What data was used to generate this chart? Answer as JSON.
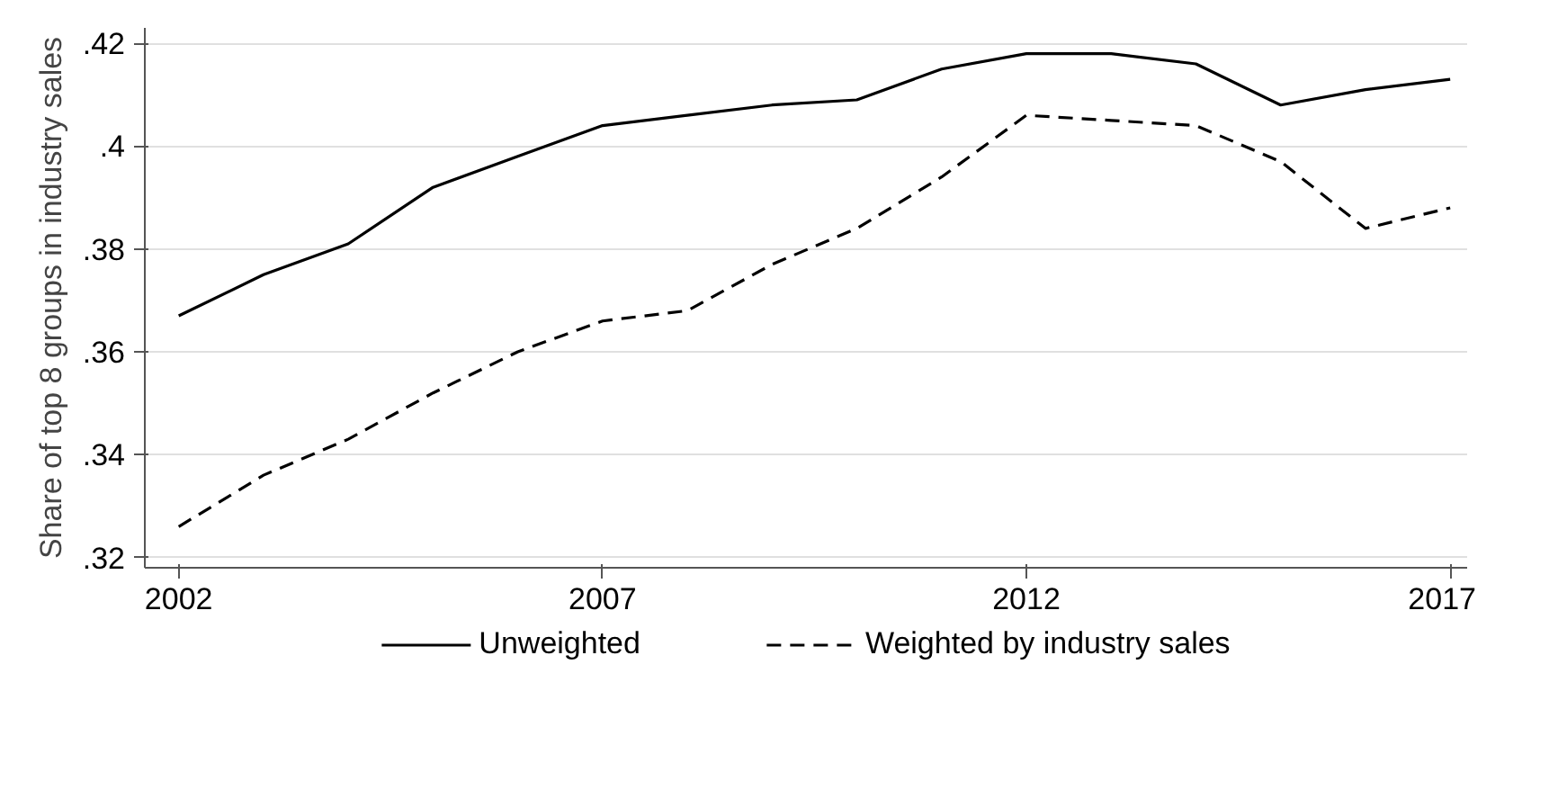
{
  "chart_data": {
    "type": "line",
    "ylabel": "Share of top 8 groups in industry sales",
    "x": [
      2002,
      2003,
      2004,
      2005,
      2006,
      2007,
      2008,
      2009,
      2010,
      2011,
      2012,
      2013,
      2014,
      2015,
      2016,
      2017
    ],
    "series": [
      {
        "name": "Unweighted",
        "color": "#000000",
        "line_style": "solid",
        "values": [
          0.367,
          0.375,
          0.381,
          0.392,
          0.398,
          0.404,
          0.406,
          0.408,
          0.409,
          0.415,
          0.418,
          0.418,
          0.416,
          0.408,
          0.411,
          0.413
        ]
      },
      {
        "name": "Weighted by industry sales",
        "color": "#000000",
        "line_style": "dashed",
        "values": [
          0.326,
          0.336,
          0.343,
          0.352,
          0.36,
          0.366,
          0.368,
          0.377,
          0.384,
          0.394,
          0.406,
          0.405,
          0.404,
          0.397,
          0.384,
          0.388
        ]
      }
    ],
    "xlim": [
      2001.6,
      2017.2
    ],
    "ylim": [
      0.318,
      0.423
    ],
    "xticks": [
      2002,
      2007,
      2012,
      2017
    ],
    "yticks": [
      {
        "value": 0.32,
        "label": ".32"
      },
      {
        "value": 0.34,
        "label": ".34"
      },
      {
        "value": 0.36,
        "label": ".36"
      },
      {
        "value": 0.38,
        "label": ".38"
      },
      {
        "value": 0.4,
        "label": ".4"
      },
      {
        "value": 0.42,
        "label": ".42"
      }
    ],
    "grid": "y",
    "legend": "bottom",
    "marker": "none"
  }
}
